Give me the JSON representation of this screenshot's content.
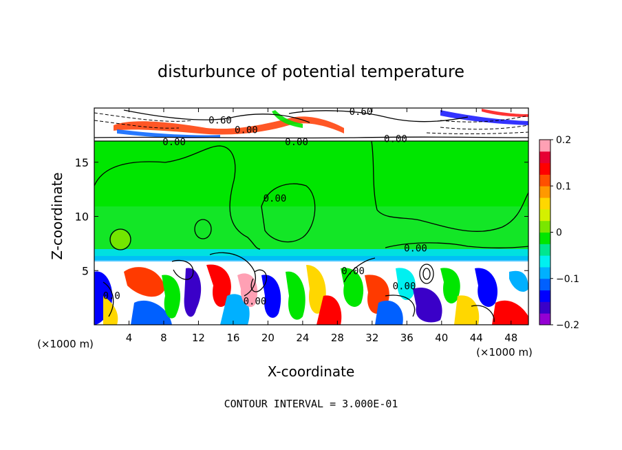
{
  "chart_data": {
    "type": "heatmap",
    "title": "disturbunce of potential temperature",
    "xlabel": "X-coordinate",
    "ylabel": "Z-coordinate",
    "x_unit_left": "(×1000 m)",
    "x_unit_right": "(×1000 m)",
    "xlim": [
      0,
      50
    ],
    "ylim": [
      0,
      20
    ],
    "x_ticks": [
      4,
      8,
      12,
      16,
      20,
      24,
      28,
      32,
      36,
      40,
      44,
      48
    ],
    "y_ticks": [
      5,
      10,
      15
    ],
    "footer": "CONTOUR INTERVAL = 3.000E-01",
    "colorbar": {
      "range": [
        -0.2,
        0.2
      ],
      "tick_values": [
        0.2,
        0.1,
        0,
        -0.1,
        -0.2
      ],
      "tick_labels": [
        "0.2",
        "0.1",
        "0",
        "−0.1",
        "−0.2"
      ],
      "colors": [
        "#9400d3",
        "#3a00c8",
        "#0000ff",
        "#0060ff",
        "#00b0ff",
        "#00f0f0",
        "#00e690",
        "#00e600",
        "#7ae600",
        "#d4f000",
        "#ffd700",
        "#ff9900",
        "#ff5000",
        "#ff0000",
        "#e60033",
        "#ffa0b4"
      ]
    },
    "contour_labels": [
      {
        "text": "0.60",
        "x": 14.5,
        "z": 18.7
      },
      {
        "text": "0.00",
        "x": 17.5,
        "z": 17.8
      },
      {
        "text": "0.00",
        "x": 9.2,
        "z": 16.7
      },
      {
        "text": "0.00",
        "x": 23.3,
        "z": 16.7
      },
      {
        "text": "0.60",
        "x": 30.7,
        "z": 19.5
      },
      {
        "text": "0.00",
        "x": 34.7,
        "z": 17.0
      },
      {
        "text": "0.00",
        "x": 20.8,
        "z": 11.5
      },
      {
        "text": "0.00",
        "x": 37.0,
        "z": 6.9
      },
      {
        "text": "0.00",
        "x": 35.7,
        "z": 3.4
      },
      {
        "text": "0.00",
        "x": 18.5,
        "z": 2.0
      },
      {
        "text": "0.00",
        "x": 29.8,
        "z": 4.8
      },
      {
        "text": "0.0",
        "x": 2.0,
        "z": 2.5
      }
    ]
  }
}
